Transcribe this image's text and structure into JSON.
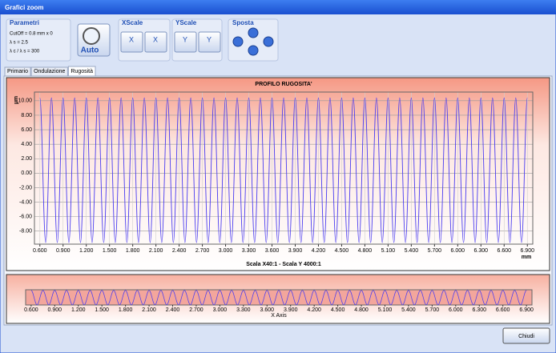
{
  "window": {
    "title": "Grafici zoom"
  },
  "parametri": {
    "title": "Parametri",
    "lines": [
      "CutOff = 0.8 mm x 0",
      "λ s = 2.5",
      "λ c / λ s = 300"
    ]
  },
  "auto": "Auto",
  "xscale": {
    "title": "XScale",
    "icons": [
      "X",
      "X"
    ]
  },
  "yscale": {
    "title": "YScale",
    "icons": [
      "Y",
      "Y"
    ]
  },
  "sposta": {
    "title": "Sposta"
  },
  "tabs": [
    "Primario",
    "Ondulazione",
    "Rugosità"
  ],
  "active_tab": 2,
  "close_button": "Chiudi",
  "chart": {
    "type": "line",
    "title": "PROFILO RUGOSITA'",
    "subtitle": "Scala X40:1 - Scala Y 4000:1",
    "ylabel": "µm",
    "xunit": "mm",
    "overview_xlabel": "X Axis",
    "color": "#4b3cf0",
    "grid": true,
    "x": [
      0.6,
      0.675,
      0.75,
      0.825,
      0.9,
      0.975,
      1.05,
      1.125,
      1.2,
      1.275,
      1.35,
      1.425,
      1.5,
      1.575,
      1.65,
      1.725,
      1.8,
      1.875,
      1.95,
      2.025,
      2.1,
      2.175,
      2.25,
      2.325,
      2.4,
      2.475,
      2.55,
      2.625,
      2.7,
      2.775,
      2.85,
      2.925,
      3,
      3.075,
      3.15,
      3.225,
      3.3,
      3.375,
      3.45,
      3.525,
      3.6,
      3.675,
      3.75,
      3.825,
      3.9,
      3.975,
      4.05,
      4.125,
      4.2,
      4.275,
      4.35,
      4.425,
      4.5,
      4.575,
      4.65,
      4.725,
      4.8,
      4.875,
      4.95,
      5.025,
      5.1,
      5.175,
      5.25,
      5.325,
      5.4,
      5.475,
      5.55,
      5.625,
      5.7,
      5.775,
      5.85,
      5.925,
      6,
      6.075,
      6.15,
      6.225,
      6.3,
      6.375,
      6.45,
      6.525,
      6.6,
      6.675,
      6.75,
      6.825,
      6.9
    ],
    "values": [
      10.4,
      -9.6,
      10.4,
      -9.6,
      10.4,
      -9.6,
      10.4,
      -9.6,
      10.4,
      -9.6,
      10.4,
      -9.6,
      10.4,
      -9.6,
      10.4,
      -9.6,
      10.4,
      -9.6,
      10.4,
      -9.6,
      10.4,
      -9.6,
      10.4,
      -9.6,
      10.4,
      -9.6,
      10.4,
      -9.6,
      10.4,
      -9.6,
      10.4,
      -9.6,
      10.4,
      -9.6,
      10.4,
      -9.6,
      10.4,
      -9.6,
      10.4,
      -9.6,
      10.4,
      -9.6,
      10.4,
      -9.6,
      10.4,
      -9.6,
      10.4,
      -9.6,
      10.4,
      -9.6,
      10.4,
      -9.6,
      10.4,
      -9.6,
      10.4,
      -9.6,
      10.4,
      -9.6,
      10.4,
      -9.6,
      10.4,
      -9.6,
      10.4,
      -9.6,
      10.4,
      -9.6,
      10.4,
      -9.6,
      10.4,
      -9.6,
      10.4,
      -9.6,
      10.4,
      -9.6,
      10.4,
      -9.6,
      10.4,
      -9.6,
      10.4,
      -9.6,
      10.4,
      -9.6,
      10.4,
      -9.6,
      10.4
    ],
    "xlim": [
      0.53,
      6.97
    ],
    "ylim": [
      -9.8,
      11.2
    ],
    "xticks": [
      {
        "value": 0.6,
        "label": "0.600"
      },
      {
        "value": 0.9,
        "label": "0.900"
      },
      {
        "value": 1.2,
        "label": "1.200"
      },
      {
        "value": 1.5,
        "label": "1.500"
      },
      {
        "value": 1.8,
        "label": "1.800"
      },
      {
        "value": 2.1,
        "label": "2.100"
      },
      {
        "value": 2.4,
        "label": "2.400"
      },
      {
        "value": 2.7,
        "label": "2.700"
      },
      {
        "value": 3.0,
        "label": "3.000"
      },
      {
        "value": 3.3,
        "label": "3.300"
      },
      {
        "value": 3.6,
        "label": "3.600"
      },
      {
        "value": 3.9,
        "label": "3.900"
      },
      {
        "value": 4.2,
        "label": "4.200"
      },
      {
        "value": 4.5,
        "label": "4.500"
      },
      {
        "value": 4.8,
        "label": "4.800"
      },
      {
        "value": 5.1,
        "label": "5.100"
      },
      {
        "value": 5.4,
        "label": "5.400"
      },
      {
        "value": 5.7,
        "label": "5.700"
      },
      {
        "value": 6.0,
        "label": "6.000"
      },
      {
        "value": 6.3,
        "label": "6.300"
      },
      {
        "value": 6.6,
        "label": "6.600"
      },
      {
        "value": 6.9,
        "label": "6.900"
      }
    ],
    "yticks": [
      {
        "value": 10,
        "label": "10.00"
      },
      {
        "value": 8,
        "label": "8.00"
      },
      {
        "value": 6,
        "label": "6.00"
      },
      {
        "value": 4,
        "label": "4.00"
      },
      {
        "value": 2,
        "label": "2.00"
      },
      {
        "value": 0,
        "label": "0.00"
      },
      {
        "value": -2,
        "label": "-2.00"
      },
      {
        "value": -4,
        "label": "-4.00"
      },
      {
        "value": -6,
        "label": "-6.00"
      },
      {
        "value": -8,
        "label": "-8.00"
      }
    ]
  }
}
